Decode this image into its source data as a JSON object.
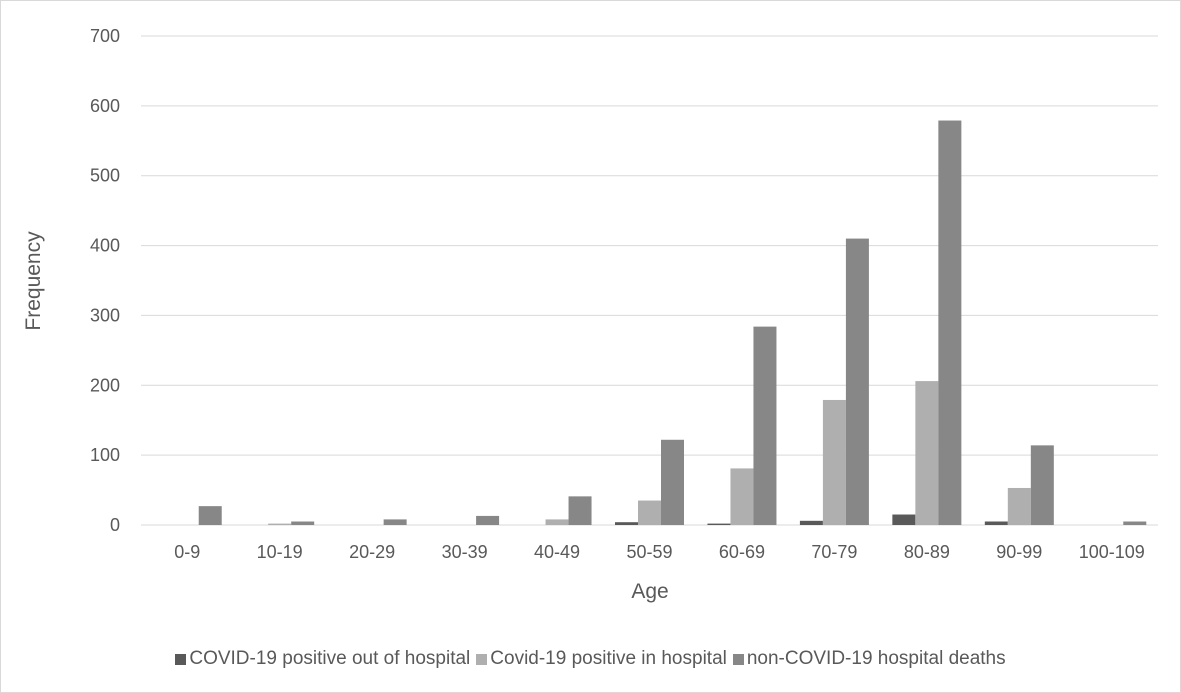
{
  "chart_data": {
    "type": "bar",
    "title": "",
    "xlabel": "Age",
    "ylabel": "Frequency",
    "ylim": [
      0,
      700
    ],
    "yticks": [
      0,
      100,
      200,
      300,
      400,
      500,
      600,
      700
    ],
    "grid": true,
    "legend_position": "bottom",
    "categories": [
      "0-9",
      "10-19",
      "20-29",
      "30-39",
      "40-49",
      "50-59",
      "60-69",
      "70-79",
      "80-89",
      "90-99",
      "100-109"
    ],
    "series": [
      {
        "name": "COVID-19 positive out of hospital",
        "color": "#595959",
        "values": [
          0,
          0,
          0,
          0,
          0,
          4,
          2,
          6,
          15,
          5,
          0
        ]
      },
      {
        "name": "Covid-19 positive in hospital",
        "color": "#afafaf",
        "values": [
          0,
          2,
          0,
          0,
          8,
          35,
          81,
          179,
          206,
          53,
          0
        ]
      },
      {
        "name": "non-COVID-19 hospital deaths",
        "color": "#878787",
        "values": [
          27,
          5,
          8,
          13,
          41,
          122,
          284,
          410,
          579,
          114,
          5
        ]
      }
    ]
  }
}
